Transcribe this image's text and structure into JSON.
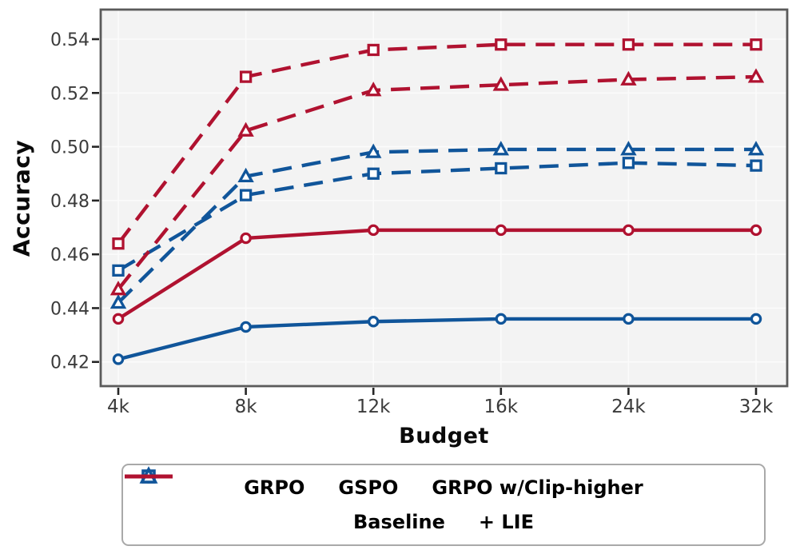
{
  "chart_data": {
    "type": "line",
    "title": "",
    "xlabel": "Budget",
    "ylabel": "Accuracy",
    "categories": [
      "4k",
      "8k",
      "12k",
      "16k",
      "24k",
      "32k"
    ],
    "y_ticks": [
      0.42,
      0.44,
      0.46,
      0.48,
      0.5,
      0.52,
      0.54
    ],
    "y_tick_labels": [
      "0.42",
      "0.44",
      "0.46",
      "0.48",
      "0.50",
      "0.52",
      "0.54"
    ],
    "ylim": [
      0.411,
      0.551
    ],
    "grid": true,
    "legend_position": "below",
    "colors": {
      "baseline": "#10559A",
      "lie": "#B01230"
    },
    "series": [
      {
        "name": "GRPO Baseline",
        "method": "GRPO",
        "variant": "Baseline",
        "color": "#10559A",
        "line_style": "solid",
        "marker": "circle",
        "values": [
          0.421,
          0.433,
          0.435,
          0.436,
          0.436,
          0.436
        ]
      },
      {
        "name": "GRPO + LIE",
        "method": "GRPO",
        "variant": "+ LIE",
        "color": "#B01230",
        "line_style": "solid",
        "marker": "circle",
        "values": [
          0.436,
          0.466,
          0.469,
          0.469,
          0.469,
          0.469
        ]
      },
      {
        "name": "GSPO Baseline",
        "method": "GSPO",
        "variant": "Baseline",
        "color": "#10559A",
        "line_style": "dashed",
        "marker": "square",
        "values": [
          0.454,
          0.482,
          0.49,
          0.492,
          0.494,
          0.493
        ]
      },
      {
        "name": "GRPO w/Clip-higher Baseline",
        "method": "GRPO w/Clip-higher",
        "variant": "Baseline",
        "color": "#10559A",
        "line_style": "dashed",
        "marker": "triangle",
        "values": [
          0.442,
          0.489,
          0.498,
          0.499,
          0.499,
          0.499
        ]
      },
      {
        "name": "GSPO + LIE",
        "method": "GSPO",
        "variant": "+ LIE",
        "color": "#B01230",
        "line_style": "dashed",
        "marker": "square",
        "values": [
          0.464,
          0.526,
          0.536,
          0.538,
          0.538,
          0.538
        ]
      },
      {
        "name": "GRPO w/Clip-higher + LIE",
        "method": "GRPO w/Clip-higher",
        "variant": "+ LIE",
        "color": "#B01230",
        "line_style": "dashed",
        "marker": "triangle",
        "values": [
          0.447,
          0.506,
          0.521,
          0.523,
          0.525,
          0.526
        ]
      }
    ],
    "legend": {
      "rows": [
        [
          {
            "label": "GRPO",
            "marker": "circle",
            "color": "#10559A"
          },
          {
            "label": "GSPO",
            "marker": "square",
            "color": "#10559A"
          },
          {
            "label": "GRPO w/Clip-higher",
            "marker": "triangle",
            "color": "#10559A"
          }
        ],
        [
          {
            "label": "Baseline",
            "marker": "line",
            "color": "#10559A"
          },
          {
            "label": "+ LIE",
            "marker": "line",
            "color": "#B01230"
          }
        ]
      ]
    }
  }
}
